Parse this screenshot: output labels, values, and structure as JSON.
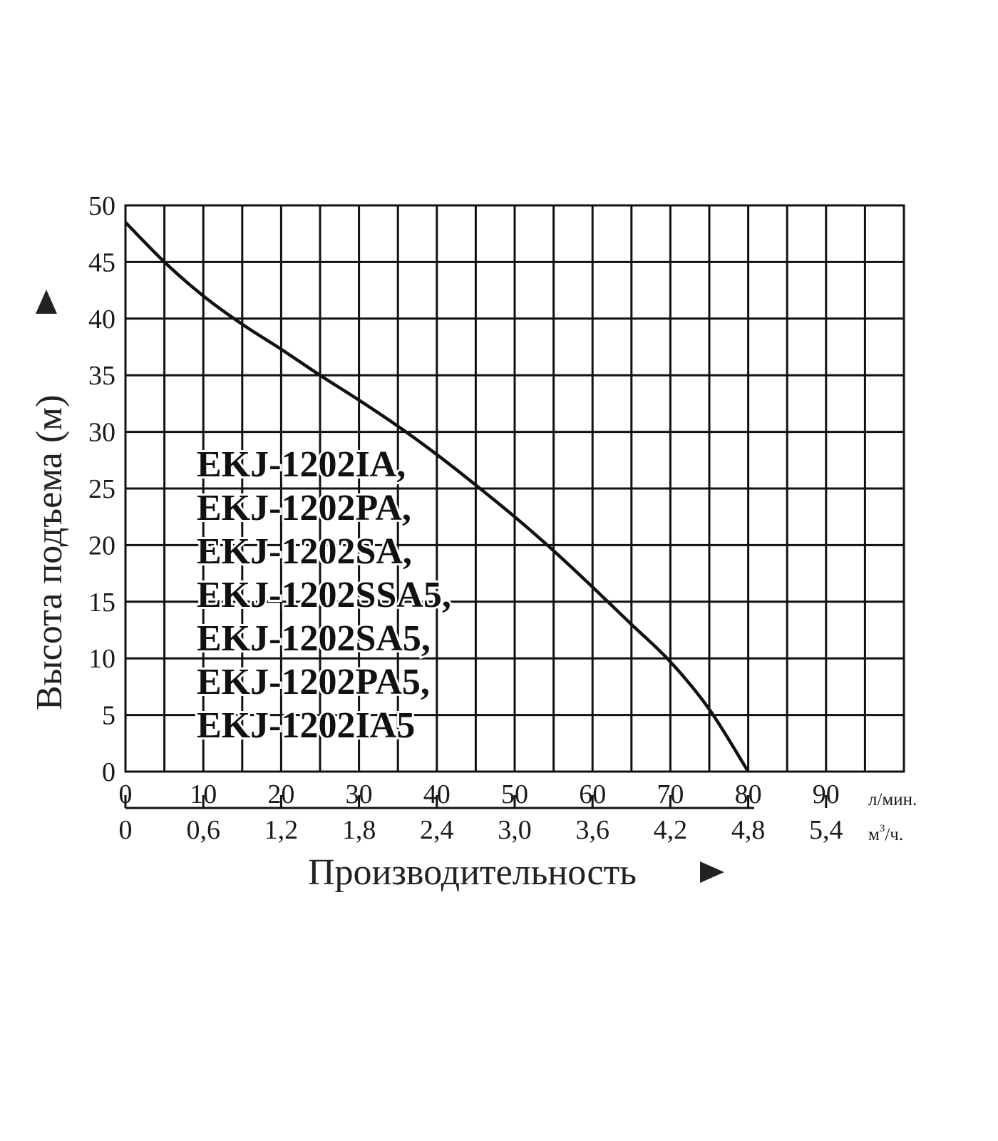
{
  "chart_data": {
    "type": "line",
    "ylabel": "Высота подъема (м)",
    "xlabel": "Производительность",
    "xlim": [
      0,
      100
    ],
    "ylim": [
      0,
      50
    ],
    "x_ticks": [
      "0",
      "10",
      "20",
      "30",
      "40",
      "50",
      "60",
      "70",
      "80",
      "90"
    ],
    "x_unit": "л/мин.",
    "x_ticks_secondary": [
      "0",
      "0,6",
      "1,2",
      "1,8",
      "2,4",
      "3,0",
      "3,6",
      "4,2",
      "4,8",
      "5,4"
    ],
    "x_unit_secondary_base": "м",
    "x_unit_secondary_sup": "3",
    "x_unit_secondary_tail": "/ч.",
    "y_ticks": [
      "0",
      "5",
      "10",
      "15",
      "20",
      "25",
      "30",
      "35",
      "40",
      "45",
      "50"
    ],
    "grid": true,
    "models": [
      "EKJ-1202IA,",
      "EKJ-1202PA,",
      "EKJ-1202SA,",
      "EKJ-1202SSA5,",
      "EKJ-1202SA5,",
      "EKJ-1202PA5,",
      "EKJ-1202IA5"
    ],
    "series": [
      {
        "x": [
          0,
          5,
          10,
          15,
          20,
          25,
          30,
          35,
          40,
          45,
          50,
          55,
          60,
          65,
          70,
          75,
          80
        ],
        "y": [
          48.5,
          45,
          42,
          39.5,
          37.3,
          35,
          32.8,
          30.5,
          28,
          25.3,
          22.5,
          19.5,
          16.3,
          13,
          9.7,
          5.5,
          0
        ]
      }
    ]
  }
}
